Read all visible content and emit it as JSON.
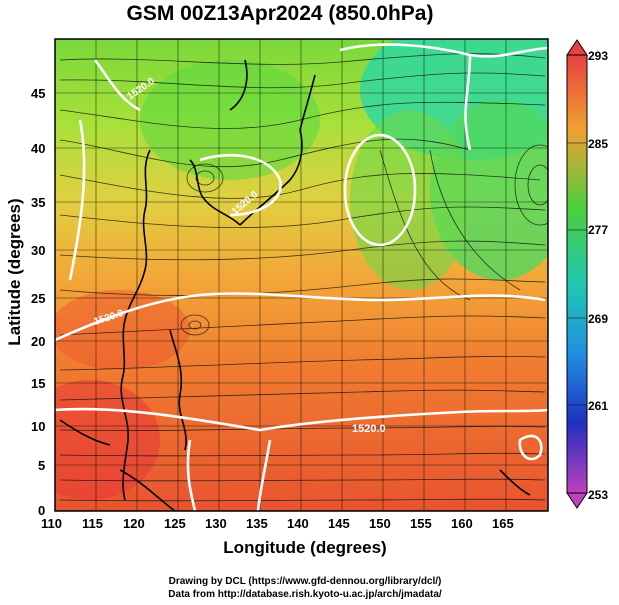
{
  "title": "GSM 00Z13Apr2024 (850.0hPa)",
  "xlabel": "Longitude (degrees)",
  "ylabel": "Latitude  (degrees)",
  "credits": {
    "line1": "Drawing by DCL (https://www.gfd-dennou.org/library/dcl/)",
    "line2": "Data from http://database.rish.kyoto-u.ac.jp/arch/jmadata/"
  },
  "x_ticks": [
    "110",
    "115",
    "120",
    "125",
    "130",
    "135",
    "140",
    "145",
    "150",
    "155",
    "160",
    "165"
  ],
  "y_ticks": [
    "0",
    "5",
    "10",
    "15",
    "20",
    "25",
    "30",
    "35",
    "40",
    "45"
  ],
  "colorbar": {
    "ticks": [
      "293",
      "285",
      "277",
      "269",
      "261",
      "253"
    ],
    "colors": [
      "#e8463c",
      "#f0a030",
      "#4ccf3c",
      "#20c8b0",
      "#2050e0",
      "#c040c0"
    ]
  },
  "contour_labels": [
    "1520.0",
    "1520.0",
    "1520.0",
    "1520.0"
  ],
  "map_extent": {
    "lon": [
      110,
      170
    ],
    "lat": [
      0,
      50
    ]
  }
}
